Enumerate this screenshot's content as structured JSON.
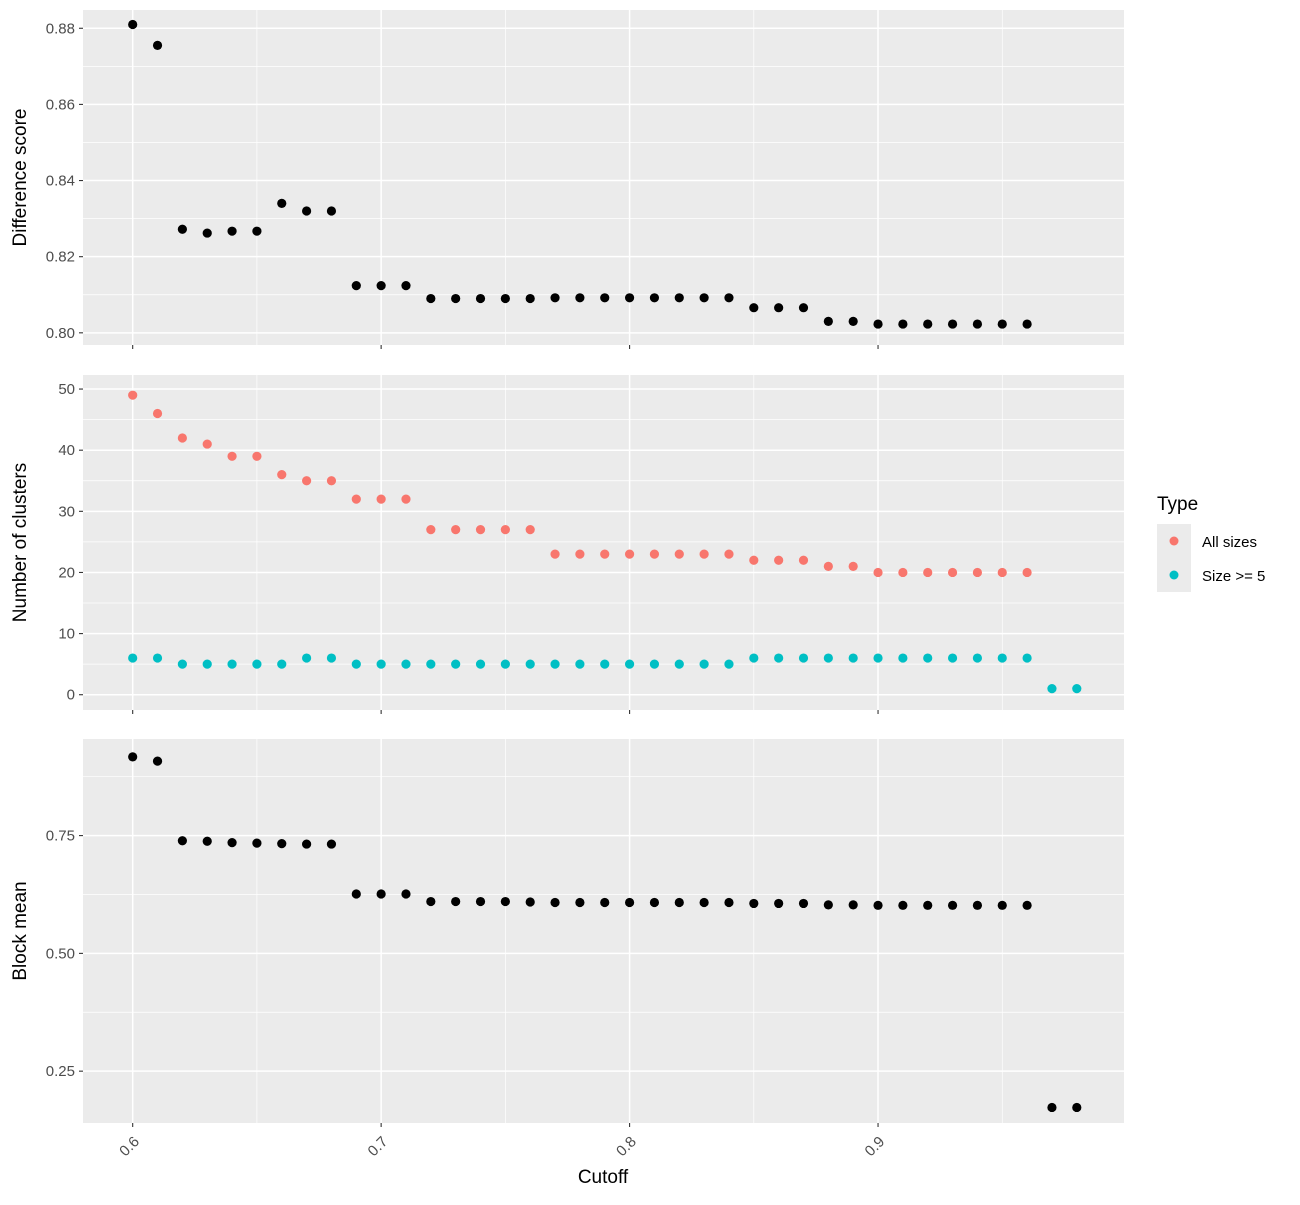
{
  "chart_data": {
    "type": "scatter",
    "xlabel": "Cutoff",
    "x_ticks": [
      "0.6",
      "0.7",
      "0.8",
      "0.9"
    ],
    "xlim": [
      0.58,
      0.999
    ],
    "grid": true,
    "legend": {
      "title": "Type",
      "placement": "right",
      "entries": [
        {
          "label": "All sizes",
          "color": "#F8766D"
        },
        {
          "label": "Size >= 5",
          "color": "#00BFC4"
        }
      ]
    },
    "panels": [
      {
        "ylabel": "Difference score",
        "ylim": [
          0.7968,
          0.8848
        ],
        "y_ticks": [
          "0.80",
          "0.82",
          "0.84",
          "0.86",
          "0.88"
        ],
        "series": [
          {
            "color": "#000000",
            "x": [
              0.6,
              0.61,
              0.62,
              0.63,
              0.64,
              0.65,
              0.66,
              0.67,
              0.68,
              0.69,
              0.7,
              0.71,
              0.72,
              0.73,
              0.74,
              0.75,
              0.76,
              0.77,
              0.78,
              0.79,
              0.8,
              0.81,
              0.82,
              0.83,
              0.84,
              0.85,
              0.86,
              0.87,
              0.88,
              0.89,
              0.9,
              0.91,
              0.92,
              0.93,
              0.94,
              0.95,
              0.96
            ],
            "y": [
              0.881,
              0.8755,
              0.8272,
              0.8262,
              0.8267,
              0.8267,
              0.834,
              0.832,
              0.832,
              0.8124,
              0.8124,
              0.8124,
              0.809,
              0.809,
              0.809,
              0.809,
              0.809,
              0.8092,
              0.8092,
              0.8092,
              0.8092,
              0.8092,
              0.8092,
              0.8092,
              0.8092,
              0.8066,
              0.8066,
              0.8066,
              0.803,
              0.803,
              0.8023,
              0.8023,
              0.8023,
              0.8023,
              0.8023,
              0.8023,
              0.8023
            ]
          }
        ]
      },
      {
        "ylabel": "Number of clusters",
        "ylim": [
          -2.5,
          52.3
        ],
        "y_ticks": [
          "0",
          "10",
          "20",
          "30",
          "40",
          "50"
        ],
        "series": [
          {
            "name": "All sizes",
            "color": "#F8766D",
            "x": [
              0.6,
              0.61,
              0.62,
              0.63,
              0.64,
              0.65,
              0.66,
              0.67,
              0.68,
              0.69,
              0.7,
              0.71,
              0.72,
              0.73,
              0.74,
              0.75,
              0.76,
              0.77,
              0.78,
              0.79,
              0.8,
              0.81,
              0.82,
              0.83,
              0.84,
              0.85,
              0.86,
              0.87,
              0.88,
              0.89,
              0.9,
              0.91,
              0.92,
              0.93,
              0.94,
              0.95,
              0.96
            ],
            "y": [
              49,
              46,
              42,
              41,
              39,
              39,
              36,
              35,
              35,
              32,
              32,
              32,
              27,
              27,
              27,
              27,
              27,
              23,
              23,
              23,
              23,
              23,
              23,
              23,
              23,
              22,
              22,
              22,
              21,
              21,
              20,
              20,
              20,
              20,
              20,
              20,
              20
            ]
          },
          {
            "name": "Size >= 5",
            "color": "#00BFC4",
            "x": [
              0.6,
              0.61,
              0.62,
              0.63,
              0.64,
              0.65,
              0.66,
              0.67,
              0.68,
              0.69,
              0.7,
              0.71,
              0.72,
              0.73,
              0.74,
              0.75,
              0.76,
              0.77,
              0.78,
              0.79,
              0.8,
              0.81,
              0.82,
              0.83,
              0.84,
              0.85,
              0.86,
              0.87,
              0.88,
              0.89,
              0.9,
              0.91,
              0.92,
              0.93,
              0.94,
              0.95,
              0.96,
              0.97,
              0.98
            ],
            "y": [
              6,
              6,
              5,
              5,
              5,
              5,
              5,
              6,
              6,
              5,
              5,
              5,
              5,
              5,
              5,
              5,
              5,
              5,
              5,
              5,
              5,
              5,
              5,
              5,
              5,
              6,
              6,
              6,
              6,
              6,
              6,
              6,
              6,
              6,
              6,
              6,
              6,
              1,
              1
            ]
          }
        ]
      },
      {
        "ylabel": "Block mean",
        "ylim": [
          0.14,
          0.955
        ],
        "y_ticks": [
          "0.25",
          "0.50",
          "0.75"
        ],
        "series": [
          {
            "color": "#000000",
            "x": [
              0.6,
              0.61,
              0.62,
              0.63,
              0.64,
              0.65,
              0.66,
              0.67,
              0.68,
              0.69,
              0.7,
              0.71,
              0.72,
              0.73,
              0.74,
              0.75,
              0.76,
              0.77,
              0.78,
              0.79,
              0.8,
              0.81,
              0.82,
              0.83,
              0.84,
              0.85,
              0.86,
              0.87,
              0.88,
              0.89,
              0.9,
              0.91,
              0.92,
              0.93,
              0.94,
              0.95,
              0.96,
              0.97,
              0.98
            ],
            "y": [
              0.917,
              0.908,
              0.739,
              0.738,
              0.735,
              0.734,
              0.733,
              0.732,
              0.732,
              0.626,
              0.626,
              0.626,
              0.61,
              0.61,
              0.61,
              0.61,
              0.609,
              0.608,
              0.608,
              0.608,
              0.608,
              0.608,
              0.608,
              0.608,
              0.608,
              0.606,
              0.606,
              0.606,
              0.603,
              0.603,
              0.602,
              0.602,
              0.602,
              0.602,
              0.602,
              0.602,
              0.602,
              0.173,
              0.173
            ]
          }
        ]
      }
    ]
  }
}
